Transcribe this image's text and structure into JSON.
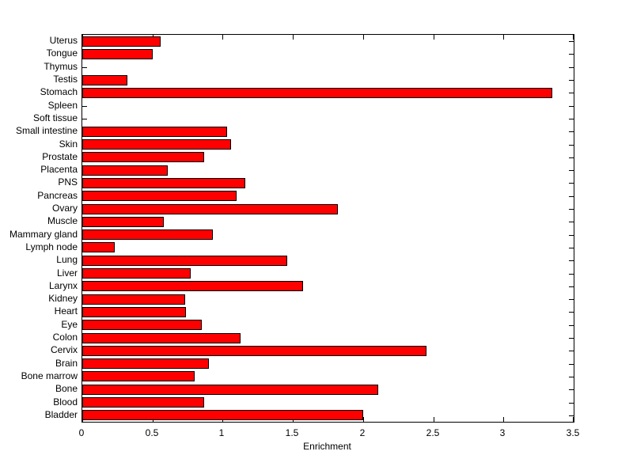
{
  "window": {
    "background_color": "#ffffff"
  },
  "chart_data": {
    "type": "bar",
    "orientation": "horizontal",
    "title": "",
    "xlabel": "Enrichment",
    "ylabel": "",
    "xlim": [
      0,
      3.5
    ],
    "x_tick_values": [
      0,
      0.5,
      1,
      1.5,
      2,
      2.5,
      3,
      3.5
    ],
    "x_tick_labels": [
      "0",
      "0.5",
      "1",
      "1.5",
      "2",
      "2.5",
      "3",
      "3.5"
    ],
    "grid": false,
    "legend": "none",
    "bar_color": "#ff0000",
    "bar_edge_color": "#000000",
    "axis_color": "#000000",
    "category_order": "top-to-bottom",
    "categories": [
      "Uterus",
      "Tongue",
      "Thymus",
      "Testis",
      "Stomach",
      "Spleen",
      "Soft tissue",
      "Small intestine",
      "Skin",
      "Prostate",
      "Placenta",
      "PNS",
      "Pancreas",
      "Ovary",
      "Muscle",
      "Mammary gland",
      "Lymph node",
      "Lung",
      "Liver",
      "Larynx",
      "Kidney",
      "Heart",
      "Eye",
      "Colon",
      "Cervix",
      "Brain",
      "Bone marrow",
      "Bone",
      "Blood",
      "Bladder"
    ],
    "values": [
      0.56,
      0.5,
      0,
      0.32,
      3.35,
      0,
      0,
      1.03,
      1.06,
      0.87,
      0.61,
      1.16,
      1.1,
      1.82,
      0.58,
      0.93,
      0.23,
      1.46,
      0.77,
      1.57,
      0.73,
      0.74,
      0.85,
      1.13,
      2.45,
      0.9,
      0.8,
      2.11,
      0.87,
      2.0
    ]
  }
}
